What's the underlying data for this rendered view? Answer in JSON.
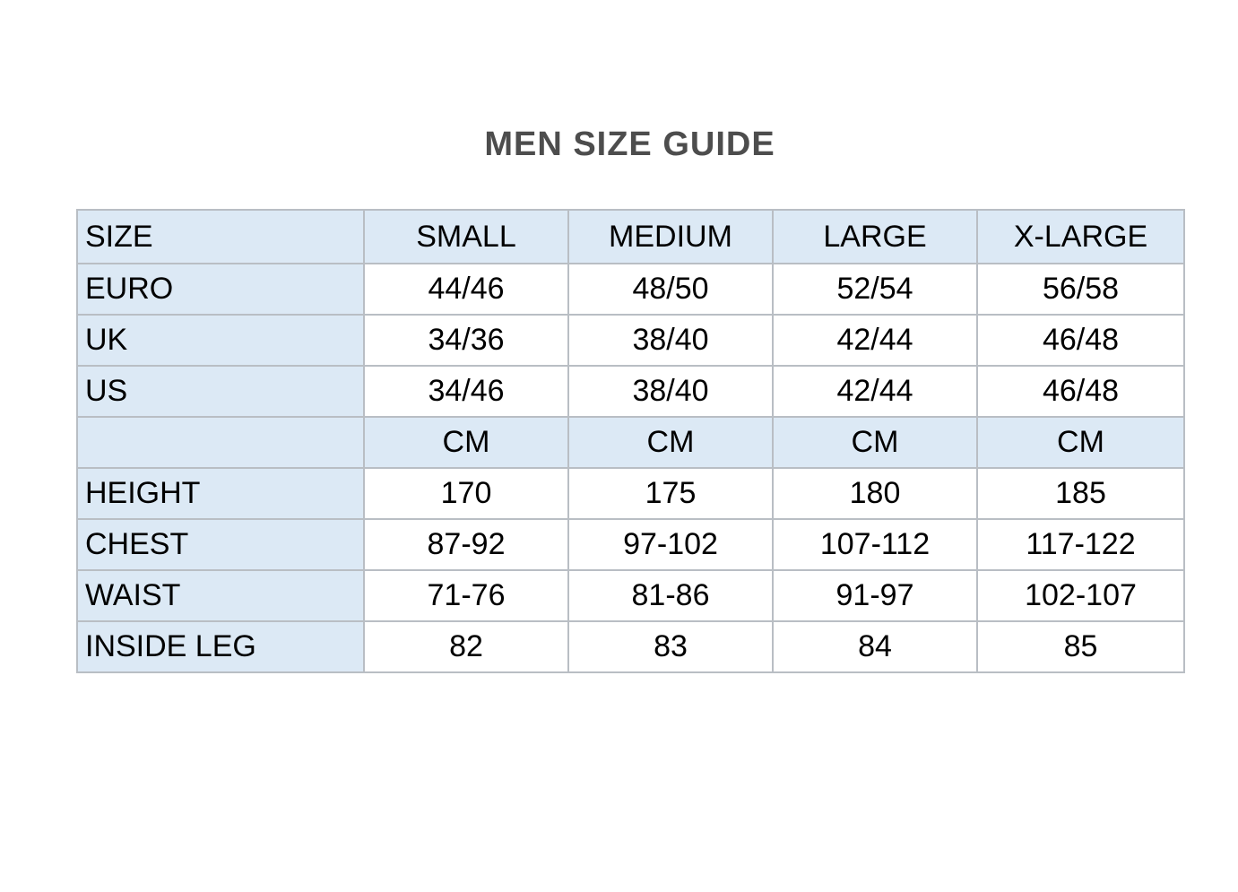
{
  "title": "MEN SIZE GUIDE",
  "colors": {
    "shaded_cell_bg": "#dce9f5",
    "grid_border": "#b9bec4",
    "title_text": "#4d4d4d",
    "cell_text": "#000000"
  },
  "size_table": {
    "header": [
      "SIZE",
      "SMALL",
      "MEDIUM",
      "LARGE",
      "X-LARGE"
    ],
    "rows": [
      {
        "type": "size-row",
        "label": "EURO",
        "values": [
          "44/46",
          "48/50",
          "52/54",
          "56/58"
        ]
      },
      {
        "type": "size-row",
        "label": "UK",
        "values": [
          "34/36",
          "38/40",
          "42/44",
          "46/48"
        ]
      },
      {
        "type": "size-row",
        "label": "US",
        "values": [
          "34/46",
          "38/40",
          "42/44",
          "46/48"
        ]
      },
      {
        "type": "unit-row",
        "label": "",
        "values": [
          "CM",
          "CM",
          "CM",
          "CM"
        ]
      },
      {
        "type": "measure-row",
        "label": "HEIGHT",
        "values": [
          "170",
          "175",
          "180",
          "185"
        ]
      },
      {
        "type": "measure-row",
        "label": "CHEST",
        "values": [
          "87-92",
          "97-102",
          "107-112",
          "117-122"
        ]
      },
      {
        "type": "measure-row",
        "label": "WAIST",
        "values": [
          "71-76",
          "81-86",
          "91-97",
          "102-107"
        ]
      },
      {
        "type": "measure-row",
        "label": "INSIDE LEG",
        "values": [
          "82",
          "83",
          "84",
          "85"
        ]
      }
    ]
  }
}
